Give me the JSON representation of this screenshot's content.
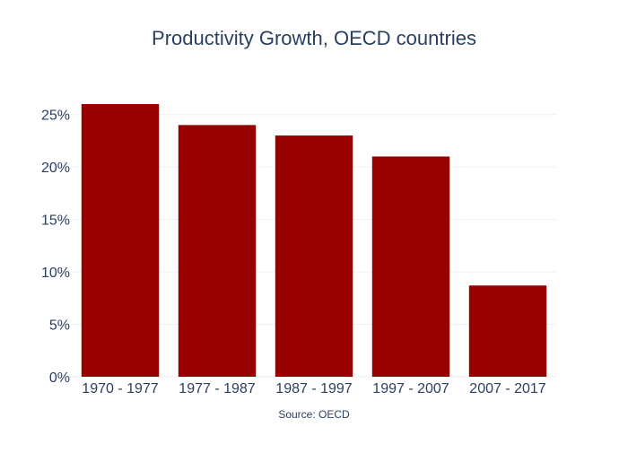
{
  "chart_data": {
    "type": "bar",
    "title": "Productivity Growth, OECD countries",
    "xlabel": "",
    "ylabel": "",
    "categories": [
      "1970 - 1977",
      "1977 - 1987",
      "1987 - 1997",
      "1997 - 2007",
      "2007 - 2017"
    ],
    "values": [
      0.26,
      0.24,
      0.23,
      0.21,
      0.087
    ],
    "ylim": [
      0,
      0.26
    ],
    "yticks": [
      0,
      0.05,
      0.1,
      0.15,
      0.2,
      0.25
    ],
    "ytick_labels": [
      "0%",
      "5%",
      "10%",
      "15%",
      "20%",
      "25%"
    ],
    "grid": true,
    "legend": false,
    "annotation": "Source: OECD",
    "colors": {
      "bar": "#990000",
      "title": "#2a3f5f",
      "tick_text": "#2a3f5f",
      "grid": "#eef0f4",
      "baseline": "#e6e9ee",
      "annotation": "#2a3f5f"
    }
  }
}
